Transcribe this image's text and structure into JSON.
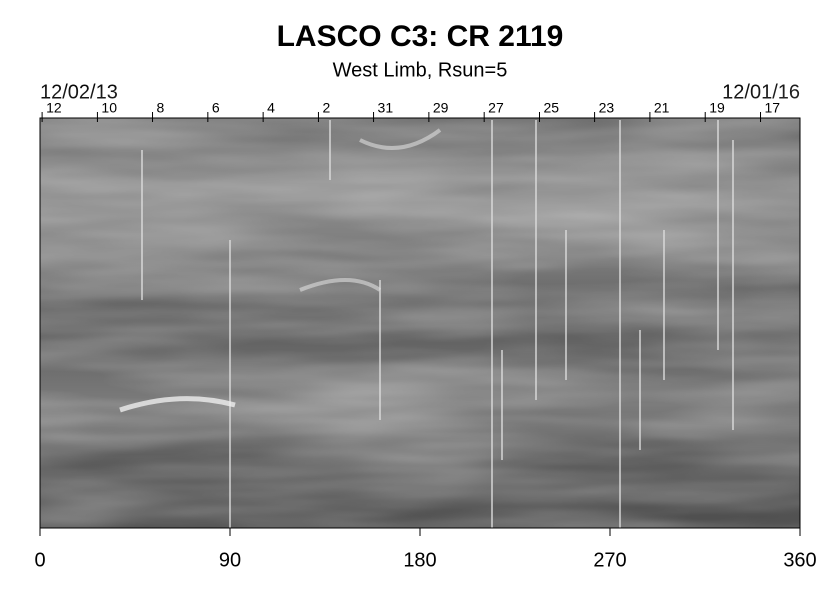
{
  "chart_data": {
    "type": "heatmap",
    "title": "LASCO C3: CR 2119",
    "subtitle": "West Limb, Rsun=5",
    "xlim": [
      0,
      360
    ],
    "xticks": [
      0,
      90,
      180,
      270,
      360
    ],
    "x2labels": [
      "12/02/13",
      "12/01/16"
    ],
    "x2ticks": [
      {
        "value": 1,
        "label": "12"
      },
      {
        "value": 27.2,
        "label": "10"
      },
      {
        "value": 53.3,
        "label": "8"
      },
      {
        "value": 79.5,
        "label": "6"
      },
      {
        "value": 105.7,
        "label": "4"
      },
      {
        "value": 131.9,
        "label": "2"
      },
      {
        "value": 158,
        "label": "31"
      },
      {
        "value": 184.2,
        "label": "29"
      },
      {
        "value": 210.4,
        "label": "27"
      },
      {
        "value": 236.6,
        "label": "25"
      },
      {
        "value": 262.7,
        "label": "23"
      },
      {
        "value": 288.9,
        "label": "21"
      },
      {
        "value": 315.1,
        "label": "19"
      },
      {
        "value": 341.3,
        "label": "17"
      }
    ]
  }
}
